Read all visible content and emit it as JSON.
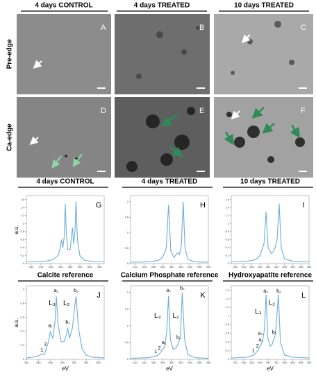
{
  "columns": [
    "4 days CONTROL",
    "4 days TREATED",
    "10 days TREATED"
  ],
  "rows": [
    "Pre-edge",
    "Ca-edge"
  ],
  "panels": [
    "A",
    "B",
    "C",
    "D",
    "E",
    "F"
  ],
  "chart_data": [
    {
      "type": "line",
      "title": "4 days CONTROL",
      "panel": "G",
      "ylabel": "a.u.",
      "color": "#6aaed6",
      "x": [
        341,
        343,
        345,
        346.5,
        347.5,
        348,
        348.2,
        348.5,
        348.8,
        349,
        349.2,
        349.5,
        350,
        350.3,
        350.5,
        350.7,
        351,
        351.2,
        351.5,
        352,
        353,
        355,
        357
      ],
      "values": [
        0.05,
        0.05,
        0.06,
        0.1,
        0.2,
        0.4,
        0.6,
        0.4,
        0.7,
        1.5,
        0.8,
        0.35,
        0.35,
        0.7,
        0.9,
        0.5,
        0.8,
        1.55,
        0.6,
        0.2,
        0.08,
        0.05,
        0.05
      ],
      "xlim": [
        341,
        357
      ],
      "xticks": [
        342,
        344,
        346,
        348,
        350,
        352,
        354,
        356
      ],
      "ylim": [
        0,
        1.7
      ],
      "yticks": [
        0,
        0.2,
        0.4,
        0.6,
        0.8,
        1,
        1.2,
        1.4,
        1.6
      ]
    },
    {
      "type": "line",
      "title": "4 days TREATED",
      "panel": "H",
      "color": "#6aaed6",
      "x": [
        341,
        343,
        345,
        347,
        348,
        348.8,
        349.3,
        349.8,
        350.5,
        351,
        351.3,
        351.7,
        352.1,
        352.5,
        352.9,
        353.5,
        354.5,
        356,
        358
      ],
      "values": [
        0.05,
        0.05,
        0.06,
        0.1,
        0.2,
        0.5,
        1.9,
        0.4,
        0.2,
        0.3,
        0.35,
        0.3,
        0.6,
        2.0,
        0.5,
        0.15,
        0.08,
        0.05,
        0.05
      ],
      "xlim": [
        341,
        358
      ],
      "xticks": [
        342,
        344,
        346,
        348,
        350,
        352,
        354,
        356,
        358
      ],
      "ylim": [
        0,
        2.2
      ],
      "yticks": [
        0,
        0.5,
        1,
        1.5,
        2
      ]
    },
    {
      "type": "line",
      "title": "10 days TREATED",
      "panel": "I",
      "color": "#6aaed6",
      "x": [
        341,
        343,
        345,
        347,
        348,
        349,
        349.5,
        350,
        350.8,
        351.3,
        351.7,
        352.2,
        352.7,
        353.2,
        354,
        356,
        358,
        360
      ],
      "values": [
        0.05,
        0.05,
        0.06,
        0.1,
        0.2,
        0.5,
        1.3,
        0.4,
        0.25,
        0.3,
        0.4,
        0.6,
        1.5,
        0.4,
        0.12,
        0.06,
        0.05,
        0.05
      ],
      "xlim": [
        341,
        360
      ],
      "xticks": [
        342,
        344,
        346,
        348,
        350,
        352,
        354,
        356,
        358,
        360
      ],
      "ylim": [
        0,
        1.7
      ],
      "yticks": [
        0,
        0.2,
        0.4,
        0.6,
        0.8,
        1,
        1.2,
        1.4,
        1.6
      ]
    },
    {
      "type": "line",
      "title": "Calcite reference",
      "panel": "J",
      "ylabel": "a.u.",
      "xlabel": "eV",
      "color": "#6aaed6",
      "annotations": [
        "1",
        "2",
        "a₁",
        "L₃",
        "a₂",
        "L₂",
        "b₁",
        "b₂"
      ],
      "x": [
        344,
        345,
        346,
        346.6,
        347,
        347.3,
        347.7,
        348,
        348.4,
        348.8,
        349,
        349.3,
        349.8,
        350.3,
        350.7,
        350.9,
        351.2,
        351.7,
        352,
        352.3,
        352.7,
        353.3,
        354,
        355,
        357
      ],
      "values": [
        0.02,
        0.03,
        0.05,
        0.08,
        0.07,
        0.15,
        0.25,
        0.4,
        0.3,
        0.55,
        0.9,
        0.5,
        0.25,
        0.25,
        0.35,
        0.45,
        0.3,
        0.45,
        0.7,
        0.9,
        0.45,
        0.15,
        0.06,
        0.03,
        0.02
      ],
      "xlim": [
        344,
        357
      ],
      "xticks": [
        344,
        346,
        348,
        350,
        352,
        354,
        356
      ],
      "ylim": [
        0,
        1.05
      ],
      "yticks": [
        0,
        0.2,
        0.4,
        0.6,
        0.8,
        1
      ]
    },
    {
      "type": "line",
      "title": "Calcium Phosphate reference",
      "panel": "K",
      "xlabel": "eV",
      "color": "#6aaed6",
      "annotations": [
        "1",
        "2",
        "a₁",
        "L₃",
        "a₂",
        "L₂",
        "b₁",
        "b₂"
      ],
      "x": [
        341,
        343,
        345,
        346.5,
        347,
        347.5,
        348,
        348.4,
        348.9,
        349.3,
        349.7,
        350.3,
        351,
        351.5,
        351.9,
        352.3,
        352.8,
        353.5,
        354.5,
        356,
        358
      ],
      "values": [
        0.03,
        0.04,
        0.05,
        0.1,
        0.12,
        0.2,
        0.3,
        0.35,
        0.8,
        1.9,
        0.6,
        0.3,
        0.35,
        0.5,
        0.7,
        2.0,
        0.6,
        0.15,
        0.07,
        0.04,
        0.03
      ],
      "xlim": [
        341,
        358
      ],
      "xticks": [
        342,
        344,
        346,
        348,
        350,
        352,
        354,
        356,
        358
      ],
      "ylim": [
        0,
        2.2
      ],
      "yticks": [
        0,
        0.5,
        1,
        1.5,
        2
      ]
    },
    {
      "type": "line",
      "title": "Hydroxyapatite reference",
      "panel": "L",
      "xlabel": "eV",
      "color": "#6aaed6",
      "annotations": [
        "1",
        "2",
        "a₀",
        "a₁",
        "L₃",
        "a₂",
        "L₂",
        "b₁",
        "b₂"
      ],
      "x": [
        341,
        343,
        345,
        346.5,
        347,
        347.5,
        348,
        348.3,
        348.7,
        349.1,
        349.5,
        349.9,
        350.5,
        351,
        351.3,
        351.6,
        352,
        352.5,
        353,
        354,
        356,
        358,
        360
      ],
      "values": [
        0.03,
        0.04,
        0.05,
        0.1,
        0.15,
        0.2,
        0.3,
        0.35,
        0.45,
        0.7,
        1.5,
        0.5,
        0.3,
        0.35,
        0.45,
        0.5,
        0.8,
        1.5,
        0.4,
        0.1,
        0.05,
        0.04,
        0.03
      ],
      "xlim": [
        341,
        360
      ],
      "xticks": [
        342,
        344,
        346,
        348,
        350,
        352,
        354,
        356,
        358,
        360
      ],
      "ylim": [
        0,
        1.7
      ],
      "yticks": [
        0,
        0.2,
        0.4,
        0.6,
        0.8,
        1,
        1.2,
        1.4,
        1.6
      ]
    }
  ]
}
